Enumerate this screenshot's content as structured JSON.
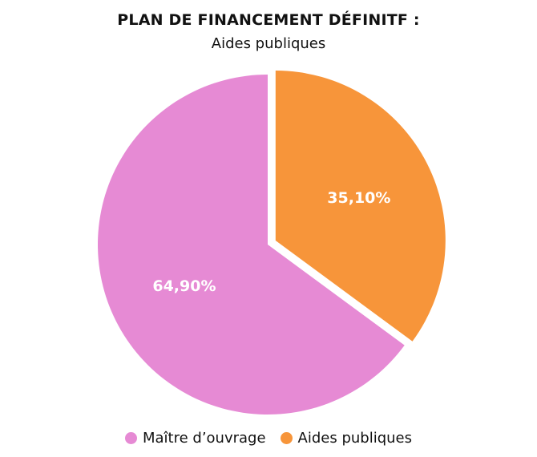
{
  "chart_data": {
    "type": "pie",
    "title": "PLAN DE FINANCEMENT DÉFINITF :",
    "subtitle": "Aides publiques",
    "slices": [
      {
        "label": "Aides publiques",
        "value": 35.1,
        "display": "35,10%",
        "color": "#f7953a",
        "exploded": true
      },
      {
        "label": "Maître d’ouvrage",
        "value": 64.9,
        "display": "64,90%",
        "color": "#e68ad4",
        "exploded": false
      }
    ],
    "legend": {
      "placement": "bottom",
      "order": [
        "Maître d’ouvrage",
        "Aides publiques"
      ]
    }
  }
}
